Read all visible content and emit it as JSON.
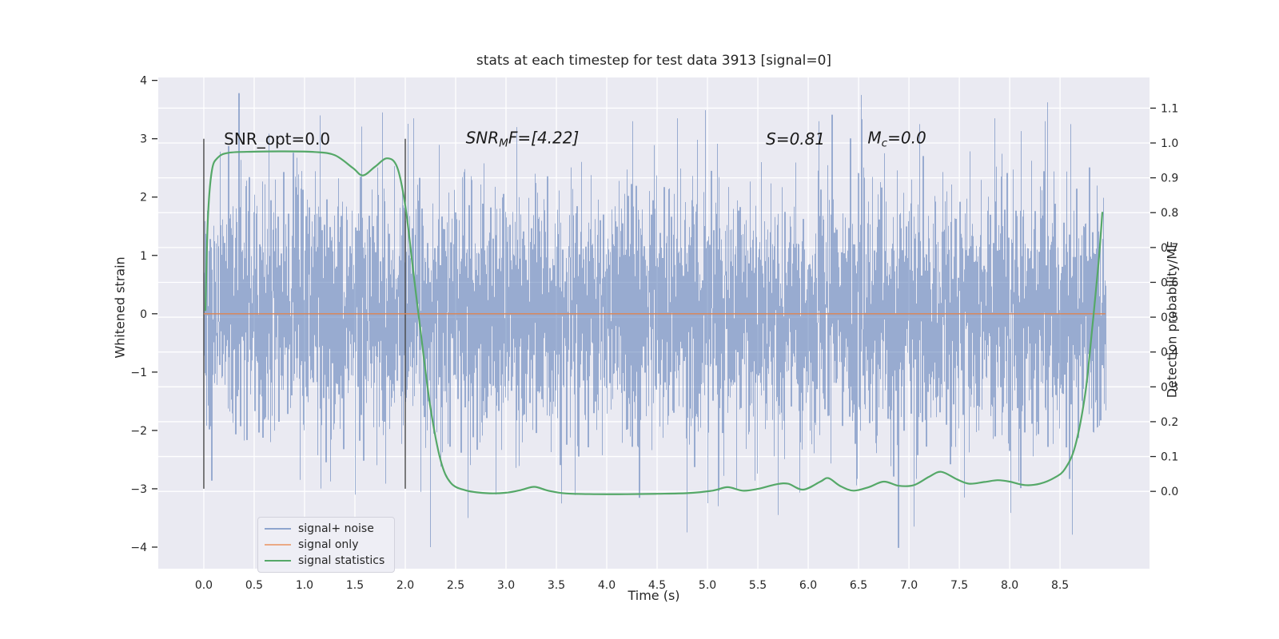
{
  "colors": {
    "figure_bg": "#ffffff",
    "axes_bg": "#eaeaf2",
    "grid": "#ffffff",
    "text": "#262626",
    "tick_mark": "#262626",
    "vline": "#474747"
  },
  "chart_data": {
    "type": "line",
    "title": "stats at each timestep for test data 3913 [signal=0]",
    "xlabel": "Time (s)",
    "ylabel_left": "Whitened strain",
    "ylabel_right": "Detection probability/MF",
    "xlim": [
      -0.452,
      9.388
    ],
    "ylim_left": [
      -4.37,
      4.05
    ],
    "ylim_right": [
      -0.222,
      1.188
    ],
    "grid": true,
    "x_ticks": {
      "values": [
        0.0,
        0.5,
        1.0,
        1.5,
        2.0,
        2.5,
        3.0,
        3.5,
        4.0,
        4.5,
        5.0,
        5.5,
        6.0,
        6.5,
        7.0,
        7.5,
        8.0,
        8.5
      ],
      "labels": [
        "0.0",
        "0.5",
        "1.0",
        "1.5",
        "2.0",
        "2.5",
        "3.0",
        "3.5",
        "4.0",
        "4.5",
        "5.0",
        "5.5",
        "6.0",
        "6.5",
        "7.0",
        "7.5",
        "8.0",
        "8.5"
      ]
    },
    "y_ticks_left": {
      "values": [
        -4,
        -3,
        -2,
        -1,
        0,
        1,
        2,
        3,
        4
      ],
      "labels": [
        "−4",
        "−3",
        "−2",
        "−1",
        "0",
        "1",
        "2",
        "3",
        "4"
      ]
    },
    "y_ticks_right": {
      "values": [
        0.0,
        0.1,
        0.2,
        0.3,
        0.4,
        0.5,
        0.6,
        0.7,
        0.8,
        0.9,
        1.0,
        1.1
      ],
      "labels": [
        "0.0",
        "0.1",
        "0.2",
        "0.3",
        "0.4",
        "0.5",
        "0.6",
        "0.7",
        "0.8",
        "0.9",
        "1.0",
        "1.1"
      ]
    },
    "vlines": {
      "x": [
        0.0,
        2.0
      ],
      "ymin": -3.0,
      "ymax": 3.0
    },
    "annotations": [
      {
        "italic": false,
        "t": 0.2,
        "strain": 3.0,
        "parts": [
          {
            "text": "SNR_opt=0.0"
          }
        ]
      },
      {
        "italic": true,
        "t": 2.6,
        "strain": 3.0,
        "parts": [
          {
            "text": "SNR"
          },
          {
            "text": "M",
            "sub": true
          },
          {
            "text": "F=[4.22]"
          }
        ]
      },
      {
        "italic": true,
        "t": 5.58,
        "strain": 3.0,
        "parts": [
          {
            "text": "S=0.81"
          }
        ]
      },
      {
        "italic": true,
        "t": 6.59,
        "strain": 3.0,
        "parts": [
          {
            "text": "M"
          },
          {
            "text": "c",
            "sub": true
          },
          {
            "text": "=0.0"
          }
        ]
      }
    ],
    "series": [
      {
        "name": "signal+ noise",
        "type": "noise",
        "axis": "left",
        "color": "#4C72B0",
        "alpha": 0.52,
        "legend_color": "#8fa5ce",
        "t_range": [
          0.0,
          8.95
        ],
        "mean": 0.0,
        "std": 1.05,
        "extremes": [
          [
            1.15,
            3.4
          ],
          [
            1.5,
            -3.1
          ],
          [
            1.77,
            3.45
          ],
          [
            2.08,
            3.35
          ],
          [
            2.25,
            -4.0
          ],
          [
            2.62,
            -3.5
          ],
          [
            2.9,
            -3.1
          ],
          [
            3.1,
            3.2
          ],
          [
            3.55,
            -3.25
          ],
          [
            4.25,
            3.3
          ],
          [
            4.7,
            3.35
          ],
          [
            5.1,
            -3.3
          ],
          [
            5.7,
            -3.45
          ],
          [
            6.1,
            3.3
          ],
          [
            6.52,
            3.75
          ],
          [
            7.1,
            3.25
          ],
          [
            7.55,
            -3.15
          ],
          [
            7.85,
            3.35
          ],
          [
            8.35,
            3.3
          ],
          [
            8.6,
            3.25
          ]
        ]
      },
      {
        "name": "signal only",
        "type": "constant",
        "axis": "left",
        "color": "#DD8452",
        "legend_color": "#eba985",
        "value": 0.0,
        "t_range": [
          0.0,
          8.95
        ]
      },
      {
        "name": "signal statistics",
        "type": "curve",
        "axis": "right",
        "color": "#55A868",
        "legend_color": "#55a868",
        "points": [
          [
            0.016,
            0.52
          ],
          [
            0.04,
            0.78
          ],
          [
            0.08,
            0.92
          ],
          [
            0.14,
            0.958
          ],
          [
            0.25,
            0.972
          ],
          [
            0.5,
            0.975
          ],
          [
            0.8,
            0.976
          ],
          [
            1.1,
            0.974
          ],
          [
            1.3,
            0.965
          ],
          [
            1.48,
            0.928
          ],
          [
            1.58,
            0.907
          ],
          [
            1.7,
            0.932
          ],
          [
            1.82,
            0.956
          ],
          [
            1.92,
            0.93
          ],
          [
            2.0,
            0.82
          ],
          [
            2.08,
            0.63
          ],
          [
            2.16,
            0.44
          ],
          [
            2.25,
            0.24
          ],
          [
            2.35,
            0.09
          ],
          [
            2.45,
            0.025
          ],
          [
            2.6,
            0.003
          ],
          [
            2.8,
            -0.005
          ],
          [
            3.0,
            -0.004
          ],
          [
            3.15,
            0.004
          ],
          [
            3.28,
            0.013
          ],
          [
            3.42,
            0.002
          ],
          [
            3.6,
            -0.006
          ],
          [
            3.9,
            -0.008
          ],
          [
            4.2,
            -0.008
          ],
          [
            4.5,
            -0.007
          ],
          [
            4.8,
            -0.005
          ],
          [
            5.05,
            0.002
          ],
          [
            5.2,
            0.012
          ],
          [
            5.35,
            0.002
          ],
          [
            5.5,
            0.007
          ],
          [
            5.68,
            0.02
          ],
          [
            5.8,
            0.022
          ],
          [
            5.95,
            0.005
          ],
          [
            6.12,
            0.028
          ],
          [
            6.2,
            0.038
          ],
          [
            6.32,
            0.015
          ],
          [
            6.45,
            0.002
          ],
          [
            6.6,
            0.012
          ],
          [
            6.75,
            0.028
          ],
          [
            6.9,
            0.016
          ],
          [
            7.05,
            0.018
          ],
          [
            7.2,
            0.042
          ],
          [
            7.32,
            0.056
          ],
          [
            7.48,
            0.034
          ],
          [
            7.6,
            0.022
          ],
          [
            7.75,
            0.027
          ],
          [
            7.88,
            0.032
          ],
          [
            8.0,
            0.028
          ],
          [
            8.15,
            0.018
          ],
          [
            8.3,
            0.022
          ],
          [
            8.45,
            0.04
          ],
          [
            8.55,
            0.065
          ],
          [
            8.65,
            0.13
          ],
          [
            8.75,
            0.28
          ],
          [
            8.82,
            0.47
          ],
          [
            8.88,
            0.65
          ],
          [
            8.92,
            0.8
          ]
        ]
      }
    ],
    "legend": {
      "position": "lower left"
    }
  }
}
